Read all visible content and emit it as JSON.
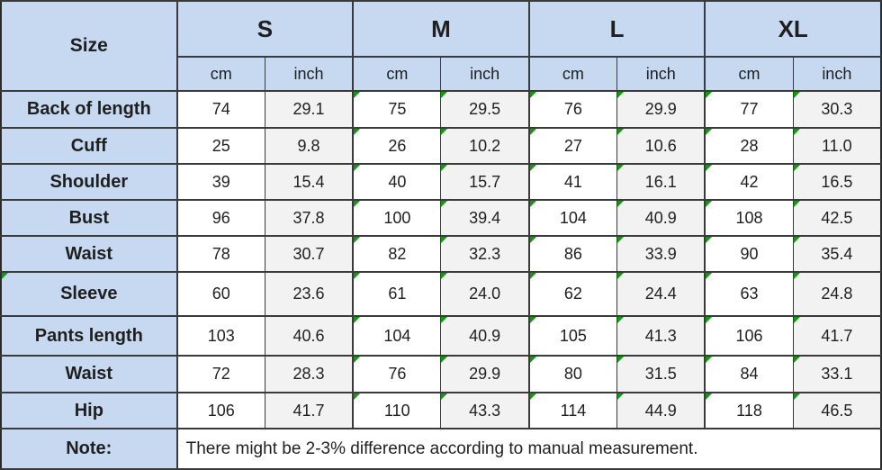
{
  "chart_data": {
    "type": "table",
    "corner_label": "Size",
    "size_groups": [
      "S",
      "M",
      "L",
      "XL"
    ],
    "unit_labels": [
      "cm",
      "inch"
    ],
    "columns": [
      "Size",
      "S cm",
      "S inch",
      "M cm",
      "M inch",
      "L cm",
      "L inch",
      "XL cm",
      "XL inch"
    ],
    "rows": [
      {
        "label": "Back of length",
        "values": [
          "74",
          "29.1",
          "75",
          "29.5",
          "76",
          "29.9",
          "77",
          "30.3"
        ]
      },
      {
        "label": "Cuff",
        "values": [
          "25",
          "9.8",
          "26",
          "10.2",
          "27",
          "10.6",
          "28",
          "11.0"
        ]
      },
      {
        "label": "Shoulder",
        "values": [
          "39",
          "15.4",
          "40",
          "15.7",
          "41",
          "16.1",
          "42",
          "16.5"
        ]
      },
      {
        "label": "Bust",
        "values": [
          "96",
          "37.8",
          "100",
          "39.4",
          "104",
          "40.9",
          "108",
          "42.5"
        ]
      },
      {
        "label": "Waist",
        "values": [
          "78",
          "30.7",
          "82",
          "32.3",
          "86",
          "33.9",
          "90",
          "35.4"
        ]
      },
      {
        "label": "Sleeve",
        "values": [
          "60",
          "23.6",
          "61",
          "24.0",
          "62",
          "24.4",
          "63",
          "24.8"
        ]
      },
      {
        "label": "Pants length",
        "values": [
          "103",
          "40.6",
          "104",
          "40.9",
          "105",
          "41.3",
          "106",
          "41.7"
        ]
      },
      {
        "label": "Waist",
        "values": [
          "72",
          "28.3",
          "76",
          "29.9",
          "80",
          "31.5",
          "84",
          "33.1"
        ]
      },
      {
        "label": "Hip",
        "values": [
          "106",
          "41.7",
          "110",
          "43.3",
          "114",
          "44.9",
          "118",
          "46.5"
        ]
      }
    ],
    "note_label": "Note:",
    "note_text": "There might be 2-3% difference according to manual measurement."
  },
  "colors": {
    "header_fill": "#c6d9f1",
    "cm_column_fill": "#ffffff",
    "inch_column_fill": "#f2f2f2",
    "border": "#3a3a3a",
    "flag_green": "#0c9c0c",
    "text": "#1f1f1f"
  }
}
